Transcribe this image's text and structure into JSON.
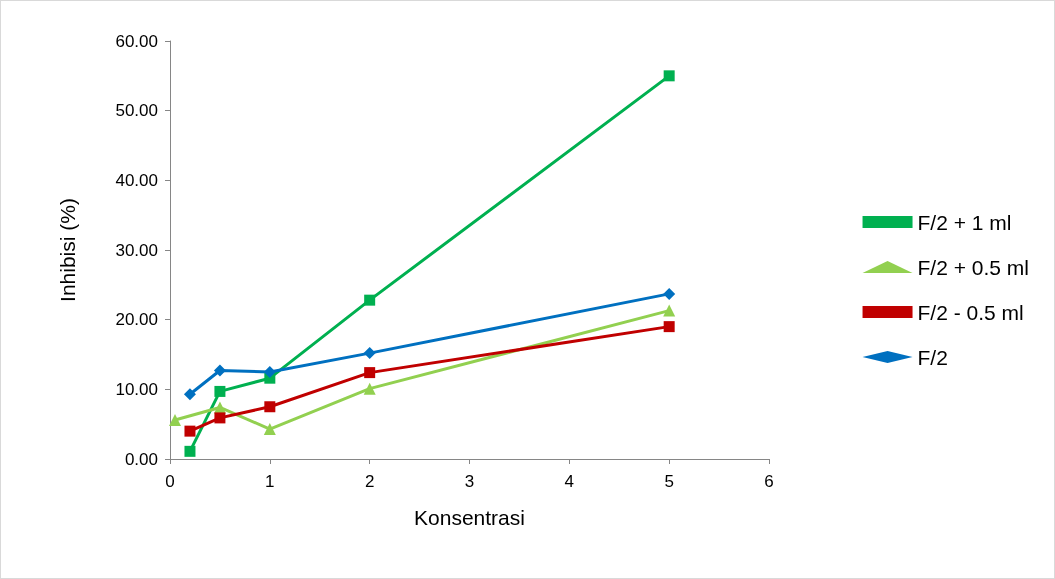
{
  "chart_data": {
    "type": "line",
    "xlabel": "Konsentrasi",
    "ylabel": "Inhibisi (%)",
    "xlim": [
      0,
      6
    ],
    "xticks": [
      0,
      1,
      2,
      3,
      4,
      5,
      6
    ],
    "ylim": [
      0,
      60
    ],
    "yticks": [
      {
        "value": 0,
        "label": "0.00"
      },
      {
        "value": 10,
        "label": "10.00"
      },
      {
        "value": 20,
        "label": "20.00"
      },
      {
        "value": 30,
        "label": "30.00"
      },
      {
        "value": 40,
        "label": "40.00"
      },
      {
        "value": 50,
        "label": "50.00"
      },
      {
        "value": 60,
        "label": "60.00"
      }
    ],
    "grid": false,
    "legend": "right",
    "series": [
      {
        "name": "F/2 + 1 ml",
        "color": "#00b050",
        "marker": "square",
        "x": [
          0.2,
          0.5,
          1,
          2,
          5
        ],
        "values": [
          1.1,
          9.7,
          11.6,
          22.8,
          55.0
        ]
      },
      {
        "name": "F/2 + 0.5 ml",
        "color": "#92d050",
        "marker": "triangle",
        "x": [
          0.05,
          0.5,
          1,
          2,
          5
        ],
        "values": [
          5.6,
          7.4,
          4.3,
          10.1,
          21.3
        ]
      },
      {
        "name": "F/2 - 0.5 ml",
        "color": "#c00000",
        "marker": "square",
        "x": [
          0.2,
          0.5,
          1,
          2,
          5
        ],
        "values": [
          4.0,
          5.9,
          7.5,
          12.4,
          19.0
        ]
      },
      {
        "name": "F/2",
        "color": "#0070c0",
        "marker": "diamond",
        "x": [
          0.2,
          0.5,
          1,
          2,
          5
        ],
        "values": [
          9.3,
          12.7,
          12.5,
          15.2,
          23.7
        ]
      }
    ]
  }
}
